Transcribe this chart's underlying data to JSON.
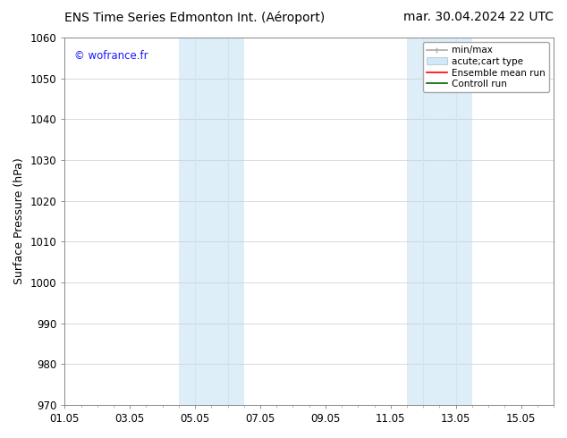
{
  "title_left": "ENS Time Series Edmonton Int. (Aéroport)",
  "title_right": "mar. 30.04.2024 22 UTC",
  "ylabel": "Surface Pressure (hPa)",
  "ylim": [
    970,
    1060
  ],
  "yticks": [
    970,
    980,
    990,
    1000,
    1010,
    1020,
    1030,
    1040,
    1050,
    1060
  ],
  "xlim": [
    0,
    15
  ],
  "xtick_labels": [
    "01.05",
    "03.05",
    "05.05",
    "07.05",
    "09.05",
    "11.05",
    "13.05",
    "15.05"
  ],
  "xtick_positions_days": [
    0,
    2,
    4,
    6,
    8,
    10,
    12,
    14
  ],
  "shaded_bands": [
    {
      "start_day": 3.5,
      "end_day": 5.5,
      "color": "#ddeef8"
    },
    {
      "start_day": 10.5,
      "end_day": 12.5,
      "color": "#ddeef8"
    }
  ],
  "thin_lines": [
    4.0,
    5.0,
    11.0,
    12.0
  ],
  "thin_line_color": "#cce5f5",
  "watermark": "© wofrance.fr",
  "watermark_color": "#1a1aff",
  "legend_labels": [
    "min/max",
    "acute;cart type",
    "Ensemble mean run",
    "Controll run"
  ],
  "legend_colors": [
    "#aaaaaa",
    "#d0e8f8",
    "#ff0000",
    "#006600"
  ],
  "bg_color": "#ffffff",
  "grid_color": "#cccccc",
  "title_fontsize": 10,
  "axis_label_fontsize": 9,
  "tick_fontsize": 8.5,
  "legend_fontsize": 7.5
}
